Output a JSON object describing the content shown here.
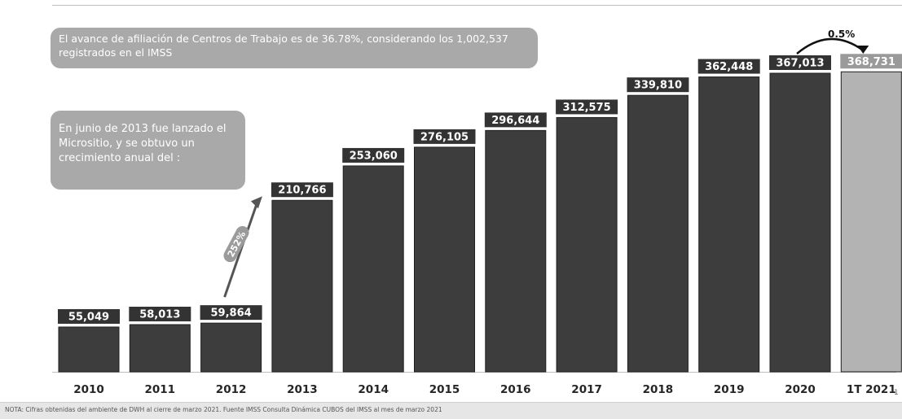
{
  "chart_data": {
    "type": "bar",
    "categories": [
      "2010",
      "2011",
      "2012",
      "2013",
      "2014",
      "2015",
      "2016",
      "2017",
      "2018",
      "2019",
      "2020",
      "1T 2021"
    ],
    "values": [
      55049,
      58013,
      59864,
      210766,
      253060,
      276105,
      296644,
      312575,
      339810,
      362448,
      367013,
      368731
    ],
    "value_labels": [
      "55,049",
      "58,013",
      "59,864",
      "210,766",
      "253,060",
      "276,105",
      "296,644",
      "312,575",
      "339,810",
      "362,448",
      "367,013",
      "368,731"
    ],
    "title": "",
    "xlabel": "",
    "ylabel": "",
    "ylim": [
      0,
      400000
    ],
    "grid": false,
    "legend": "none",
    "colors": {
      "bar": "#3d3d3d",
      "highlight_bar": "#b3b3b3",
      "label_bg": "#333333",
      "label_text": "#ffffff"
    },
    "annotations": {
      "growth_2012_2013": "252%",
      "growth_2020_2021": "0.5%"
    }
  },
  "callouts": {
    "top_text": "El avance de afiliación de Centros de Trabajo es de 36.78%, considerando los 1,002,537 registrados en el IMSS",
    "left_text": "En junio de 2013 fue lanzado el Micrositio, y se obtuvo un crecimiento anual del :"
  },
  "footnote": "NOTA: Cifras obtenidas del ambiente de DWH al cierre de marzo 2021. Fuente IMSS Consulta Dinámica CUBOS del IMSS al mes de marzo 2021",
  "page_number": "1"
}
